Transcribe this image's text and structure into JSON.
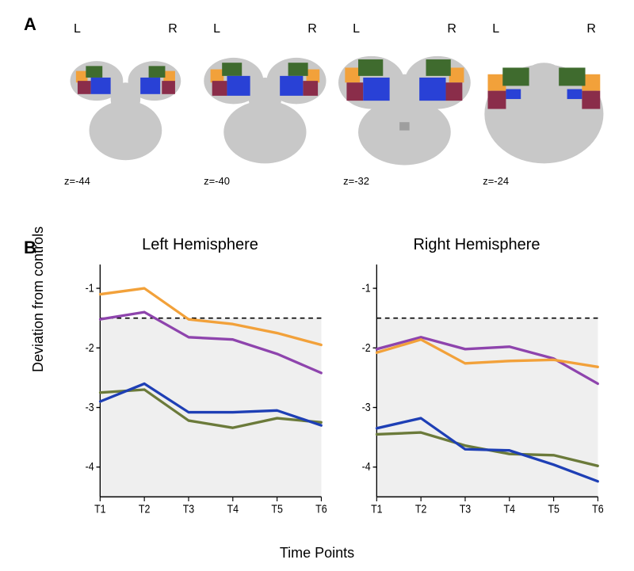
{
  "panel_labels": {
    "A": "A",
    "B": "B"
  },
  "panelA": {
    "lr": {
      "L": "L",
      "R": "R"
    },
    "slices": [
      {
        "z_label": "z=-44"
      },
      {
        "z_label": "z=-40"
      },
      {
        "z_label": "z=-32"
      },
      {
        "z_label": "z=-24"
      }
    ],
    "region_colors": {
      "orange": "#f2a13a",
      "green": "#3f6b2e",
      "maroon": "#8a2d4a",
      "blue": "#2941d6"
    },
    "brain_gray": "#c8c8c8",
    "brain_gray_dark": "#9e9e9e"
  },
  "panelB": {
    "left_title": "Left Hemisphere",
    "right_title": "Right Hemisphere",
    "y_label": "Deviation from controls",
    "x_label": "Time Points",
    "x_categories": [
      "T1",
      "T2",
      "T3",
      "T4",
      "T5",
      "T6"
    ],
    "ylim": [
      -4.5,
      -0.6
    ],
    "ytick_values": [
      -1,
      -2,
      -3,
      -4
    ],
    "ytick_labels": [
      "-1",
      "-2",
      "-3",
      "-4"
    ],
    "threshold": -1.5,
    "shade_color": "#efefef",
    "axis_color": "#000000",
    "line_width": 3,
    "dash_pattern": "6,5",
    "series_colors": {
      "orange": "#f2a13a",
      "purple": "#8e44ad",
      "blue": "#1e3fb5",
      "olive": "#6b7a3a"
    },
    "left": {
      "orange": [
        -1.1,
        -1.0,
        -1.52,
        -1.6,
        -1.75,
        -1.95
      ],
      "purple": [
        -1.52,
        -1.4,
        -1.82,
        -1.86,
        -2.1,
        -2.42
      ],
      "blue": [
        -2.9,
        -2.6,
        -3.08,
        -3.08,
        -3.05,
        -3.3
      ],
      "olive": [
        -2.75,
        -2.7,
        -3.22,
        -3.34,
        -3.18,
        -3.25
      ]
    },
    "right": {
      "orange": [
        -2.08,
        -1.86,
        -2.26,
        -2.22,
        -2.2,
        -2.32
      ],
      "purple": [
        -2.02,
        -1.82,
        -2.02,
        -1.98,
        -2.18,
        -2.6
      ],
      "blue": [
        -3.35,
        -3.18,
        -3.7,
        -3.72,
        -3.96,
        -4.24
      ],
      "olive": [
        -3.45,
        -3.42,
        -3.64,
        -3.78,
        -3.8,
        -3.98
      ]
    },
    "title_fontsize": 20,
    "tick_fontsize": 13,
    "axis_label_fontsize": 18
  }
}
